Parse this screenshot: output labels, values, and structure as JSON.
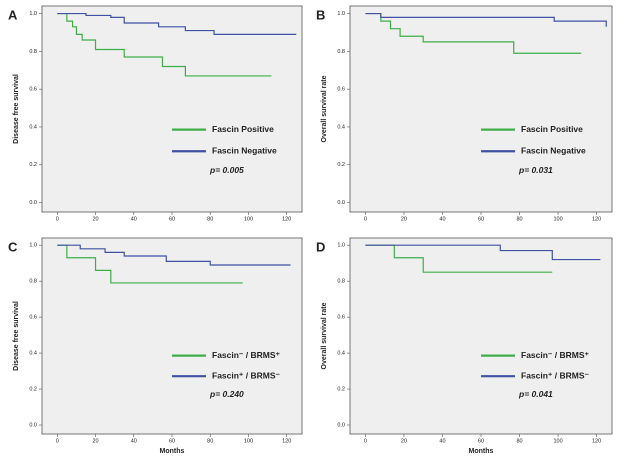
{
  "chart_data": [
    {
      "type": "step",
      "panel": "A",
      "ylabel": "Disease free survival",
      "annotation": "p= 0.005",
      "xlim": [
        -8,
        128
      ],
      "ylim": [
        -0.05,
        1.04
      ],
      "xticks": [
        0,
        20,
        40,
        60,
        80,
        100,
        120
      ],
      "yticks": [
        {
          "value": 0,
          "label": "0.0"
        },
        0.2,
        0.4,
        0.6,
        0.8,
        {
          "value": 1,
          "label": "1.0"
        }
      ],
      "legend": "lower right",
      "series": [
        {
          "name": "Fascin Positive",
          "color": "#3fae49",
          "x": [
            0,
            5,
            8,
            10,
            13,
            20,
            35,
            55,
            67,
            112
          ],
          "values": [
            1.0,
            0.96,
            0.93,
            0.89,
            0.86,
            0.81,
            0.77,
            0.72,
            0.67,
            0.67
          ]
        },
        {
          "name": "Fascin Negative",
          "color": "#3f51a3",
          "x": [
            0,
            15,
            28,
            35,
            53,
            67,
            82,
            125
          ],
          "values": [
            1.0,
            0.99,
            0.98,
            0.95,
            0.93,
            0.91,
            0.89,
            0.89
          ]
        }
      ]
    },
    {
      "type": "step",
      "panel": "B",
      "ylabel": "Overall survival rate",
      "annotation": "p= 0.031",
      "xlim": [
        -8,
        128
      ],
      "ylim": [
        -0.05,
        1.04
      ],
      "xticks": [
        0,
        20,
        40,
        60,
        80,
        100,
        120
      ],
      "yticks": [
        {
          "value": 0,
          "label": "0.0"
        },
        0.2,
        0.4,
        0.6,
        0.8,
        {
          "value": 1,
          "label": "1.0"
        }
      ],
      "legend": "lower right",
      "series": [
        {
          "name": "Fascin Positive",
          "color": "#3fae49",
          "x": [
            0,
            8,
            13,
            18,
            30,
            77,
            112
          ],
          "values": [
            1.0,
            0.96,
            0.92,
            0.88,
            0.85,
            0.79,
            0.79
          ]
        },
        {
          "name": "Fascin Negative",
          "color": "#3f51a3",
          "x": [
            0,
            8,
            98,
            125
          ],
          "values": [
            1.0,
            0.98,
            0.96,
            0.93
          ]
        }
      ]
    },
    {
      "type": "step",
      "panel": "C",
      "ylabel": "Disease free survival",
      "xlabel": "Months",
      "annotation": "p= 0.240",
      "xlim": [
        -8,
        128
      ],
      "ylim": [
        -0.05,
        1.04
      ],
      "xticks": [
        0,
        20,
        40,
        60,
        80,
        100,
        120
      ],
      "yticks": [
        {
          "value": 0,
          "label": "0.0"
        },
        0.2,
        0.4,
        0.6,
        0.8,
        {
          "value": 1,
          "label": "1.0"
        }
      ],
      "legend": "lower right",
      "series": [
        {
          "name": "Fascin⁻ / BRMS⁺",
          "color": "#3fae49",
          "x": [
            0,
            5,
            20,
            28,
            97
          ],
          "values": [
            1.0,
            0.93,
            0.86,
            0.79,
            0.79
          ]
        },
        {
          "name": "Fascin⁺ / BRMS⁻",
          "color": "#3f51a3",
          "x": [
            0,
            12,
            25,
            35,
            57,
            80,
            122
          ],
          "values": [
            1.0,
            0.98,
            0.96,
            0.94,
            0.91,
            0.89,
            0.89
          ]
        }
      ]
    },
    {
      "type": "step",
      "panel": "D",
      "ylabel": "Overall survival rate",
      "xlabel": "Months",
      "annotation": "p= 0.041",
      "xlim": [
        -8,
        128
      ],
      "ylim": [
        -0.05,
        1.04
      ],
      "xticks": [
        0,
        20,
        40,
        60,
        80,
        100,
        120
      ],
      "yticks": [
        {
          "value": 0,
          "label": "0.0"
        },
        0.2,
        0.4,
        0.6,
        0.8,
        {
          "value": 1,
          "label": "1.0"
        }
      ],
      "legend": "lower right",
      "series": [
        {
          "name": "Fascin⁻ / BRMS⁺",
          "color": "#3fae49",
          "x": [
            0,
            15,
            30,
            97
          ],
          "values": [
            1.0,
            0.93,
            0.85,
            0.85
          ]
        },
        {
          "name": "Fascin⁺ / BRMS⁻",
          "color": "#3f51a3",
          "x": [
            0,
            70,
            97,
            122
          ],
          "values": [
            1.0,
            0.97,
            0.92,
            0.92
          ]
        }
      ]
    }
  ]
}
